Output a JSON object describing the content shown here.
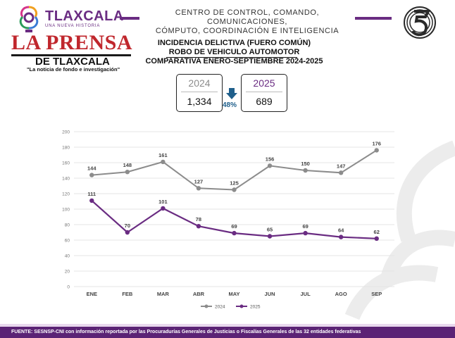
{
  "header": {
    "brand": "TLAXCALA",
    "brand_sub": "UNA NUEVA HISTORIA",
    "center_title_line1": "CENTRO DE CONTROL, COMANDO, COMUNICACIONES,",
    "center_title_line2": "CÓMPUTO, COORDINACIÓN E INTELIGENCIA",
    "logo_right": "c5"
  },
  "newspaper": {
    "name": "LA PRENSA",
    "name_sub": "DE TLAXCALA",
    "tagline": "\"La noticia de fondo e investigación\""
  },
  "report": {
    "title_line1": "INCIDENCIA DELICTIVA (FUERO COMÚN)",
    "title_line2": "ROBO DE VEHICULO AUTOMOTOR",
    "title_line3": "COMPARATIVA ENERO-SEPTIEMBRE 2024-2025"
  },
  "summary": {
    "year_a": "2024",
    "value_a": "1,334",
    "year_b": "2025",
    "value_b": "689",
    "change": "48%",
    "change_icon": "arrow-down-icon"
  },
  "colors": {
    "series_2024": "#8c8c8c",
    "series_2025": "#6a2c82",
    "accent_purple": "#6a2c82",
    "change_blue": "#1f5f8b"
  },
  "chart_data": {
    "type": "line",
    "categories": [
      "ENE",
      "FEB",
      "MAR",
      "ABR",
      "MAY",
      "JUN",
      "JUL",
      "AGO",
      "SEP"
    ],
    "series": [
      {
        "name": "2024",
        "values": [
          144,
          148,
          161,
          127,
          125,
          156,
          150,
          147,
          176
        ],
        "labels": [
          "144",
          "148",
          "161",
          "127",
          "125",
          "156",
          "150",
          "147",
          "176"
        ]
      },
      {
        "name": "2025",
        "values": [
          111,
          70,
          101,
          78,
          69,
          65,
          69,
          64,
          62
        ],
        "labels": [
          "111",
          "70",
          "101",
          "78",
          "69",
          "65",
          "69",
          "64",
          "62"
        ]
      }
    ],
    "ylim": [
      0,
      200
    ],
    "yticks": [
      "0",
      "20",
      "40",
      "60",
      "80",
      "100",
      "120",
      "140",
      "160",
      "180",
      "200"
    ],
    "grid": true,
    "legend": "bottom"
  },
  "footer": {
    "source": "FUENTE: SESNSP-CNI con información reportada por las Procuradurías Generales de Justicias o Fiscalías Generales de las 32 entidades federativas"
  }
}
